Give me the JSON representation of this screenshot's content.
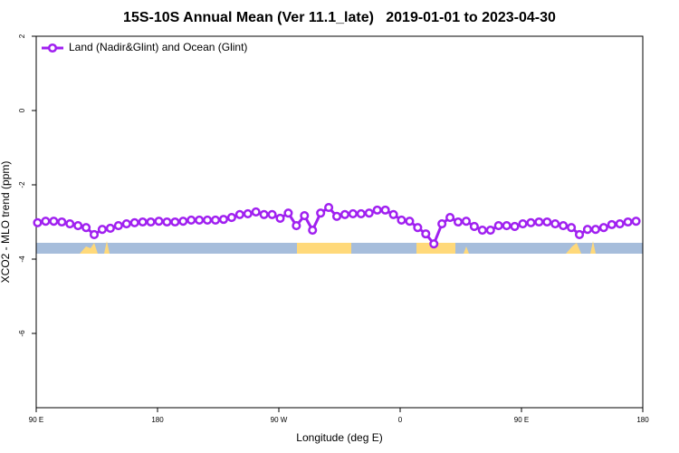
{
  "chart_data": {
    "type": "line",
    "title": "15S-10S Annual Mean (Ver 11.1_late)   2019-01-01 to 2023-04-30",
    "x_label": "Longitude (deg E)",
    "y_label": "XCO2 - MLO trend (ppm)",
    "xlim": [
      90,
      540
    ],
    "ylim": [
      -8,
      2
    ],
    "xticks": [
      {
        "value": 90,
        "label": "90 E"
      },
      180,
      {
        "value": 270,
        "label": "90 W"
      },
      {
        "value": 360,
        "label": "0"
      },
      {
        "value": 450,
        "label": "90 E"
      },
      {
        "value": 540,
        "label": "180"
      }
    ],
    "yticks": [
      -6,
      -4,
      -2,
      0,
      2
    ],
    "legend": "upper left",
    "x": [
      91,
      97,
      103,
      109,
      115,
      121,
      127,
      133,
      139,
      145,
      151,
      157,
      163,
      169,
      175,
      181,
      187,
      193,
      199,
      205,
      211,
      217,
      223,
      229,
      235,
      241,
      247,
      253,
      259,
      265,
      271,
      277,
      283,
      289,
      295,
      301,
      307,
      313,
      319,
      325,
      331,
      337,
      343,
      349,
      355,
      361,
      367,
      373,
      379,
      385,
      391,
      397,
      403,
      409,
      415,
      421,
      427,
      433,
      439,
      445,
      451,
      457,
      463,
      469,
      475,
      481,
      487,
      493,
      499,
      505,
      511,
      517,
      523,
      529,
      535
    ],
    "series": [
      {
        "name": "Land (Nadir&Glint) and Ocean (Glint)",
        "color": "#a020f0",
        "values": [
          -3.02,
          -2.98,
          -2.98,
          -3.0,
          -3.05,
          -3.1,
          -3.15,
          -3.34,
          -3.2,
          -3.17,
          -3.1,
          -3.05,
          -3.02,
          -3.0,
          -3.0,
          -2.98,
          -3.0,
          -3.0,
          -2.98,
          -2.95,
          -2.95,
          -2.95,
          -2.95,
          -2.93,
          -2.88,
          -2.8,
          -2.78,
          -2.73,
          -2.8,
          -2.8,
          -2.9,
          -2.76,
          -3.1,
          -2.83,
          -3.22,
          -2.76,
          -2.61,
          -2.85,
          -2.8,
          -2.78,
          -2.78,
          -2.76,
          -2.68,
          -2.68,
          -2.8,
          -2.95,
          -2.98,
          -3.15,
          -3.32,
          -3.59,
          -3.05,
          -2.88,
          -3.0,
          -2.98,
          -3.12,
          -3.22,
          -3.22,
          -3.1,
          -3.1,
          -3.12,
          -3.05,
          -3.02,
          -3.0,
          -3.0,
          -3.05,
          -3.1,
          -3.15,
          -3.34,
          -3.2,
          -3.2,
          -3.15,
          -3.07,
          -3.05,
          -3.0,
          -2.98
        ]
      }
    ]
  }
}
